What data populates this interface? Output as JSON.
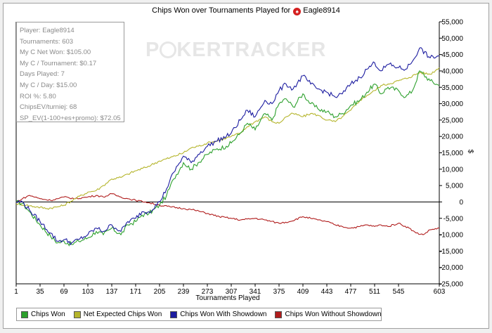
{
  "chart_data": {
    "type": "line",
    "title": "Chips Won over Tournaments Played for",
    "player_name": "Eagle8914",
    "xlabel": "Tournaments Played",
    "ylabel": "$",
    "xlim": [
      1,
      603
    ],
    "ylim": [
      -25000,
      55000
    ],
    "x_ticks": [
      1,
      35,
      69,
      103,
      137,
      171,
      205,
      239,
      273,
      307,
      341,
      375,
      409,
      443,
      477,
      511,
      545,
      603
    ],
    "y_ticks": [
      -25000,
      -20000,
      -15000,
      -10000,
      -5000,
      0,
      5000,
      10000,
      15000,
      20000,
      25000,
      30000,
      35000,
      40000,
      45000,
      50000,
      55000
    ],
    "y_tick_labels": [
      "-25,000",
      "-20,000",
      "-15,000",
      "-10,000",
      "-5,000",
      "0",
      "5,000",
      "10,000",
      "15,000",
      "20,000",
      "25,000",
      "30,000",
      "35,000",
      "40,000",
      "45,000",
      "50,000",
      "55,000"
    ],
    "grid": false,
    "zero_line": true,
    "legend_position": "bottom-left",
    "series": [
      {
        "name": "Chips Won",
        "color": "#2ca02c",
        "points": [
          [
            1,
            0
          ],
          [
            10,
            -500
          ],
          [
            20,
            -3000
          ],
          [
            35,
            -7000
          ],
          [
            50,
            -10500
          ],
          [
            60,
            -12500
          ],
          [
            69,
            -12000
          ],
          [
            80,
            -13000
          ],
          [
            90,
            -12000
          ],
          [
            103,
            -11000
          ],
          [
            115,
            -9000
          ],
          [
            125,
            -10000
          ],
          [
            137,
            -8000
          ],
          [
            150,
            -10000
          ],
          [
            160,
            -7000
          ],
          [
            171,
            -6000
          ],
          [
            180,
            -4000
          ],
          [
            190,
            -3500
          ],
          [
            205,
            -1000
          ],
          [
            215,
            2000
          ],
          [
            225,
            7000
          ],
          [
            239,
            12000
          ],
          [
            250,
            10000
          ],
          [
            260,
            12000
          ],
          [
            273,
            14500
          ],
          [
            285,
            16000
          ],
          [
            300,
            17000
          ],
          [
            307,
            18000
          ],
          [
            320,
            21000
          ],
          [
            330,
            24000
          ],
          [
            341,
            22000
          ],
          [
            355,
            27000
          ],
          [
            365,
            25000
          ],
          [
            375,
            30000
          ],
          [
            385,
            31500
          ],
          [
            395,
            29000
          ],
          [
            409,
            33000
          ],
          [
            420,
            30000
          ],
          [
            430,
            28500
          ],
          [
            443,
            27500
          ],
          [
            455,
            26000
          ],
          [
            465,
            27000
          ],
          [
            477,
            29500
          ],
          [
            490,
            31000
          ],
          [
            500,
            33500
          ],
          [
            511,
            36000
          ],
          [
            520,
            33000
          ],
          [
            530,
            35000
          ],
          [
            545,
            34000
          ],
          [
            555,
            32000
          ],
          [
            565,
            34000
          ],
          [
            575,
            40000
          ],
          [
            590,
            37000
          ],
          [
            603,
            35500
          ]
        ]
      },
      {
        "name": "Net Expected Chips Won",
        "color": "#b5b52c",
        "points": [
          [
            1,
            -500
          ],
          [
            15,
            -1000
          ],
          [
            30,
            -1500
          ],
          [
            45,
            -2000
          ],
          [
            60,
            -1500
          ],
          [
            69,
            -1000
          ],
          [
            85,
            1000
          ],
          [
            103,
            3000
          ],
          [
            115,
            3500
          ],
          [
            125,
            5000
          ],
          [
            137,
            7000
          ],
          [
            150,
            7500
          ],
          [
            160,
            8500
          ],
          [
            171,
            9500
          ],
          [
            185,
            10500
          ],
          [
            205,
            12500
          ],
          [
            220,
            13500
          ],
          [
            239,
            15000
          ],
          [
            250,
            16500
          ],
          [
            260,
            17000
          ],
          [
            273,
            18000
          ],
          [
            285,
            18500
          ],
          [
            300,
            19500
          ],
          [
            307,
            20000
          ],
          [
            320,
            21000
          ],
          [
            330,
            23000
          ],
          [
            341,
            24500
          ],
          [
            355,
            26000
          ],
          [
            365,
            24500
          ],
          [
            375,
            24000
          ],
          [
            385,
            26000
          ],
          [
            395,
            27000
          ],
          [
            409,
            26000
          ],
          [
            420,
            27000
          ],
          [
            430,
            26500
          ],
          [
            443,
            25000
          ],
          [
            455,
            24500
          ],
          [
            465,
            26000
          ],
          [
            477,
            28000
          ],
          [
            490,
            31000
          ],
          [
            500,
            32500
          ],
          [
            511,
            34000
          ],
          [
            520,
            35500
          ],
          [
            530,
            36000
          ],
          [
            545,
            37000
          ],
          [
            560,
            38000
          ],
          [
            575,
            39500
          ],
          [
            590,
            39000
          ],
          [
            603,
            41000
          ]
        ]
      },
      {
        "name": "Chips Won With Showdown",
        "color": "#1c1ca0",
        "points": [
          [
            1,
            0
          ],
          [
            10,
            0
          ],
          [
            20,
            -2500
          ],
          [
            35,
            -6000
          ],
          [
            50,
            -9500
          ],
          [
            60,
            -12000
          ],
          [
            69,
            -11500
          ],
          [
            80,
            -12500
          ],
          [
            90,
            -11500
          ],
          [
            103,
            -10000
          ],
          [
            115,
            -8000
          ],
          [
            125,
            -9000
          ],
          [
            137,
            -7000
          ],
          [
            150,
            -9000
          ],
          [
            160,
            -6000
          ],
          [
            171,
            -5000
          ],
          [
            180,
            -3000
          ],
          [
            190,
            -3000
          ],
          [
            205,
            0
          ],
          [
            215,
            4000
          ],
          [
            225,
            9000
          ],
          [
            239,
            14000
          ],
          [
            250,
            12000
          ],
          [
            260,
            14500
          ],
          [
            273,
            17000
          ],
          [
            285,
            18500
          ],
          [
            300,
            20000
          ],
          [
            307,
            21000
          ],
          [
            320,
            25000
          ],
          [
            330,
            28000
          ],
          [
            341,
            26000
          ],
          [
            355,
            31000
          ],
          [
            365,
            30000
          ],
          [
            375,
            34000
          ],
          [
            385,
            36000
          ],
          [
            395,
            34500
          ],
          [
            409,
            38500
          ],
          [
            420,
            36000
          ],
          [
            430,
            34500
          ],
          [
            443,
            33500
          ],
          [
            455,
            32000
          ],
          [
            465,
            33000
          ],
          [
            477,
            36000
          ],
          [
            490,
            38000
          ],
          [
            500,
            40500
          ],
          [
            511,
            42500
          ],
          [
            520,
            40000
          ],
          [
            530,
            42000
          ],
          [
            545,
            41000
          ],
          [
            555,
            40500
          ],
          [
            565,
            43000
          ],
          [
            575,
            47000
          ],
          [
            590,
            44000
          ],
          [
            603,
            44500
          ]
        ]
      },
      {
        "name": "Chips Won Without Showdown",
        "color": "#b01c1c",
        "points": [
          [
            1,
            0
          ],
          [
            10,
            1000
          ],
          [
            20,
            2000
          ],
          [
            35,
            1000
          ],
          [
            50,
            500
          ],
          [
            60,
            1000
          ],
          [
            69,
            1500
          ],
          [
            85,
            1000
          ],
          [
            103,
            1500
          ],
          [
            115,
            2000
          ],
          [
            125,
            1500
          ],
          [
            137,
            2500
          ],
          [
            150,
            1500
          ],
          [
            160,
            1000
          ],
          [
            171,
            500
          ],
          [
            185,
            0
          ],
          [
            205,
            -1000
          ],
          [
            220,
            -1500
          ],
          [
            239,
            -2000
          ],
          [
            255,
            -2500
          ],
          [
            273,
            -3500
          ],
          [
            290,
            -4500
          ],
          [
            307,
            -5000
          ],
          [
            320,
            -5500
          ],
          [
            341,
            -5000
          ],
          [
            355,
            -5500
          ],
          [
            375,
            -6500
          ],
          [
            390,
            -6000
          ],
          [
            409,
            -4500
          ],
          [
            420,
            -5000
          ],
          [
            430,
            -5500
          ],
          [
            443,
            -6000
          ],
          [
            455,
            -7000
          ],
          [
            465,
            -7500
          ],
          [
            477,
            -8000
          ],
          [
            490,
            -7500
          ],
          [
            500,
            -7000
          ],
          [
            511,
            -7500
          ],
          [
            520,
            -7000
          ],
          [
            530,
            -7500
          ],
          [
            545,
            -6500
          ],
          [
            560,
            -8000
          ],
          [
            570,
            -9500
          ],
          [
            580,
            -10000
          ],
          [
            590,
            -8500
          ],
          [
            603,
            -8000
          ]
        ]
      }
    ],
    "info": [
      "Player: Eagle8914",
      "Tournaments: 603",
      "My C Net Won: $105.00",
      "My C / Tournament: $0.17",
      "Days Played: 7",
      "My C / Day: $15.00",
      "ROI %: 5.80",
      "ChipsEV/turniej: 68",
      "SP_EV(1-100+es+promo): $72.05"
    ],
    "watermark": "POKERTRACKER"
  }
}
